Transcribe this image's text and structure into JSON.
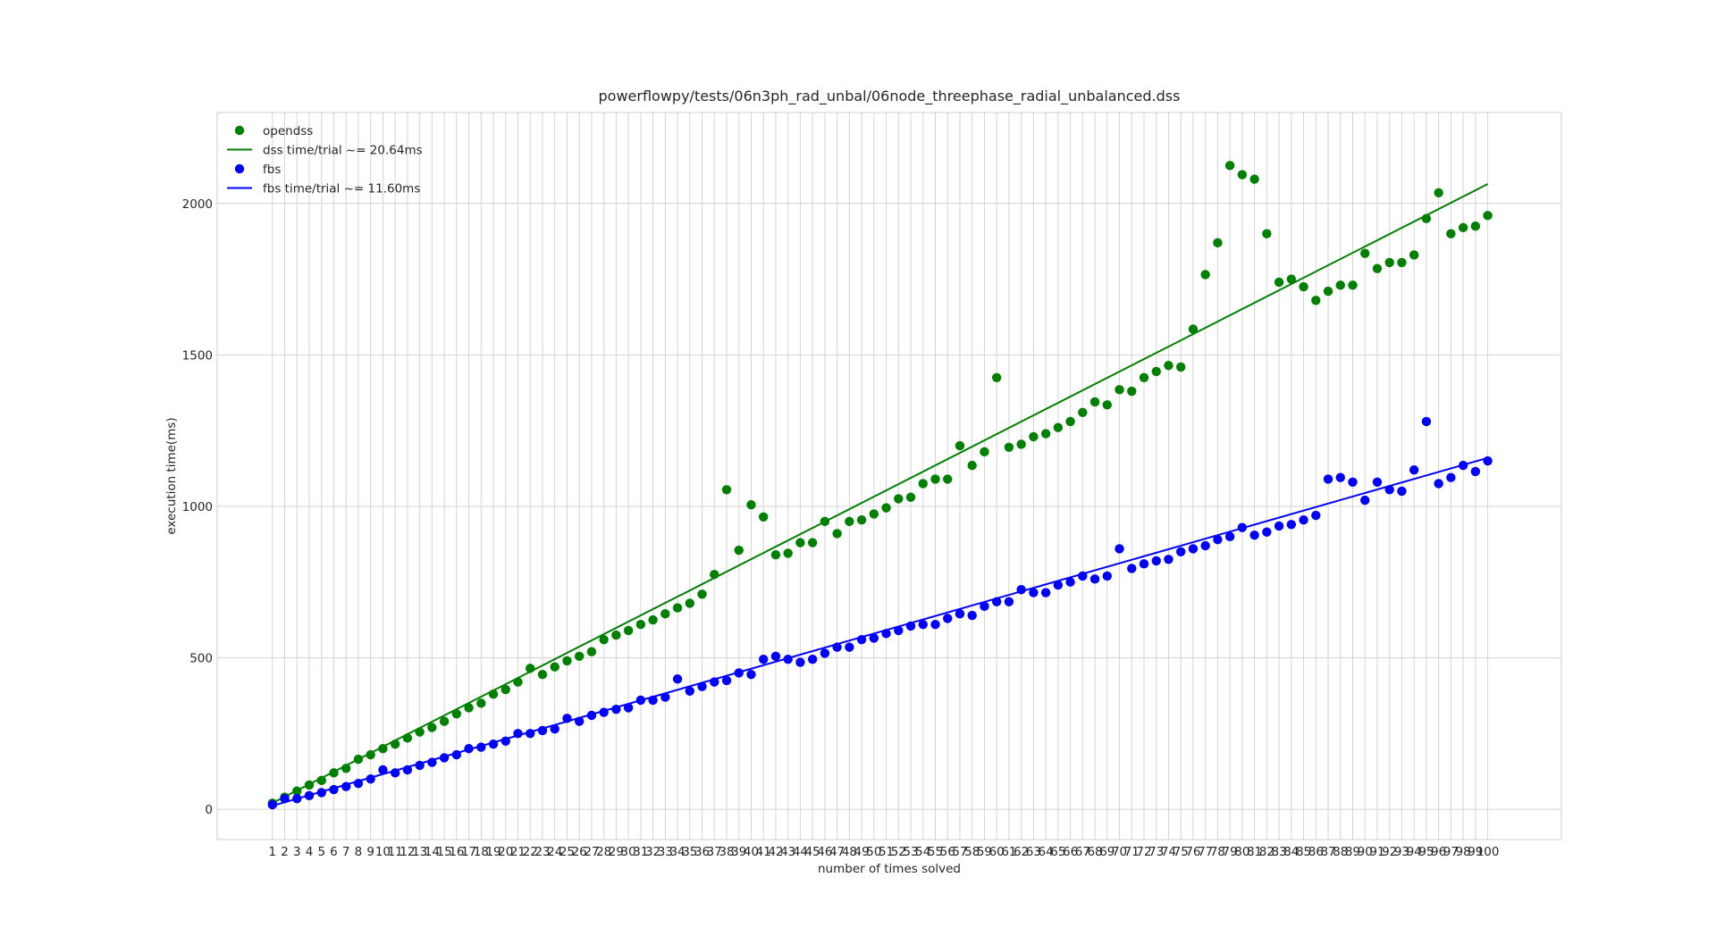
{
  "chart_data": {
    "type": "scatter",
    "title": "powerflowpy/tests/06n3ph_rad_unbal/06node_threephase_radial_unbalanced.dss",
    "xlabel": "number of times solved",
    "ylabel": "execution time(ms)",
    "xlim": [
      -3.5,
      106
    ],
    "ylim": [
      -100,
      2300
    ],
    "grid": true,
    "legend_position": "top-left",
    "x": [
      1,
      2,
      3,
      4,
      5,
      6,
      7,
      8,
      9,
      10,
      11,
      12,
      13,
      14,
      15,
      16,
      17,
      18,
      19,
      20,
      21,
      22,
      23,
      24,
      25,
      26,
      27,
      28,
      29,
      30,
      31,
      32,
      33,
      34,
      35,
      36,
      37,
      38,
      39,
      40,
      41,
      42,
      43,
      44,
      45,
      46,
      47,
      48,
      49,
      50,
      51,
      52,
      53,
      54,
      55,
      56,
      57,
      58,
      59,
      60,
      61,
      62,
      63,
      64,
      65,
      66,
      67,
      68,
      69,
      70,
      71,
      72,
      73,
      74,
      75,
      76,
      77,
      78,
      79,
      80,
      81,
      82,
      83,
      84,
      85,
      86,
      87,
      88,
      89,
      90,
      91,
      92,
      93,
      94,
      95,
      96,
      97,
      98,
      99,
      100
    ],
    "x_tick_labels": [
      "1",
      "2",
      "3",
      "4",
      "5",
      "6",
      "7",
      "8",
      "9",
      "10",
      "11",
      "12",
      "13",
      "14",
      "15",
      "16",
      "17",
      "18",
      "19",
      "20",
      "21",
      "22",
      "23",
      "24",
      "25",
      "26",
      "27",
      "28",
      "29",
      "30",
      "31",
      "32",
      "33",
      "34",
      "35",
      "36",
      "37",
      "38",
      "39",
      "40",
      "41",
      "42",
      "43",
      "44",
      "45",
      "46",
      "47",
      "48",
      "49",
      "50",
      "51",
      "52",
      "53",
      "54",
      "55",
      "56",
      "57",
      "58",
      "59",
      "60",
      "61",
      "62",
      "63",
      "64",
      "65",
      "66",
      "67",
      "68",
      "69",
      "70",
      "71",
      "72",
      "73",
      "74",
      "75",
      "76",
      "77",
      "78",
      "79",
      "80",
      "81",
      "82",
      "83",
      "84",
      "85",
      "86",
      "87",
      "88",
      "89",
      "90",
      "91",
      "92",
      "93",
      "94",
      "95",
      "96",
      "97",
      "98",
      "99",
      "100"
    ],
    "y_ticks": [
      0,
      500,
      1000,
      1500,
      2000
    ],
    "y_tick_labels": [
      "0",
      "500",
      "1000",
      "1500",
      "2000"
    ],
    "series": [
      {
        "name": "opendss",
        "kind": "scatter",
        "color": "#008000",
        "values": [
          20,
          40,
          60,
          80,
          95,
          120,
          135,
          165,
          180,
          200,
          215,
          235,
          255,
          270,
          290,
          315,
          335,
          350,
          380,
          395,
          420,
          465,
          445,
          470,
          490,
          505,
          520,
          560,
          575,
          590,
          610,
          625,
          645,
          665,
          680,
          710,
          775,
          1055,
          855,
          1005,
          965,
          840,
          845,
          880,
          880,
          950,
          910,
          950,
          955,
          975,
          995,
          1025,
          1030,
          1075,
          1090,
          1090,
          1200,
          1135,
          1180,
          1425,
          1195,
          1205,
          1230,
          1240,
          1260,
          1280,
          1310,
          1345,
          1335,
          1385,
          1380,
          1425,
          1445,
          1465,
          1460,
          1585,
          1765,
          1870,
          2125,
          2095,
          2080,
          1900,
          1740,
          1750,
          1725,
          1680,
          1710,
          1730,
          1730,
          1835,
          1785,
          1805,
          1805,
          1830,
          1950,
          2035,
          1900,
          1920,
          1925,
          1960
        ]
      },
      {
        "name": "dss time/trial ~= 20.64ms",
        "kind": "line",
        "color": "#008000",
        "slope": 20.64,
        "intercept": 0
      },
      {
        "name": "fbs",
        "kind": "scatter",
        "color": "#0000ff",
        "values": [
          15,
          35,
          35,
          45,
          55,
          65,
          75,
          85,
          100,
          130,
          120,
          130,
          145,
          155,
          170,
          180,
          200,
          205,
          215,
          225,
          250,
          250,
          260,
          265,
          300,
          290,
          310,
          320,
          330,
          335,
          360,
          360,
          370,
          430,
          390,
          405,
          420,
          425,
          450,
          445,
          495,
          505,
          495,
          485,
          495,
          515,
          535,
          535,
          560,
          565,
          580,
          590,
          605,
          610,
          610,
          630,
          645,
          640,
          670,
          685,
          685,
          725,
          715,
          715,
          740,
          750,
          770,
          760,
          770,
          860,
          795,
          810,
          820,
          825,
          850,
          860,
          870,
          890,
          900,
          930,
          905,
          915,
          935,
          940,
          955,
          970,
          1090,
          1095,
          1080,
          1020,
          1080,
          1055,
          1050,
          1120,
          1280,
          1075,
          1095,
          1135,
          1115,
          1150
        ]
      },
      {
        "name": "fbs time/trial ~= 11.60ms",
        "kind": "line",
        "color": "#0000ff",
        "slope": 11.6,
        "intercept": 0
      }
    ]
  }
}
